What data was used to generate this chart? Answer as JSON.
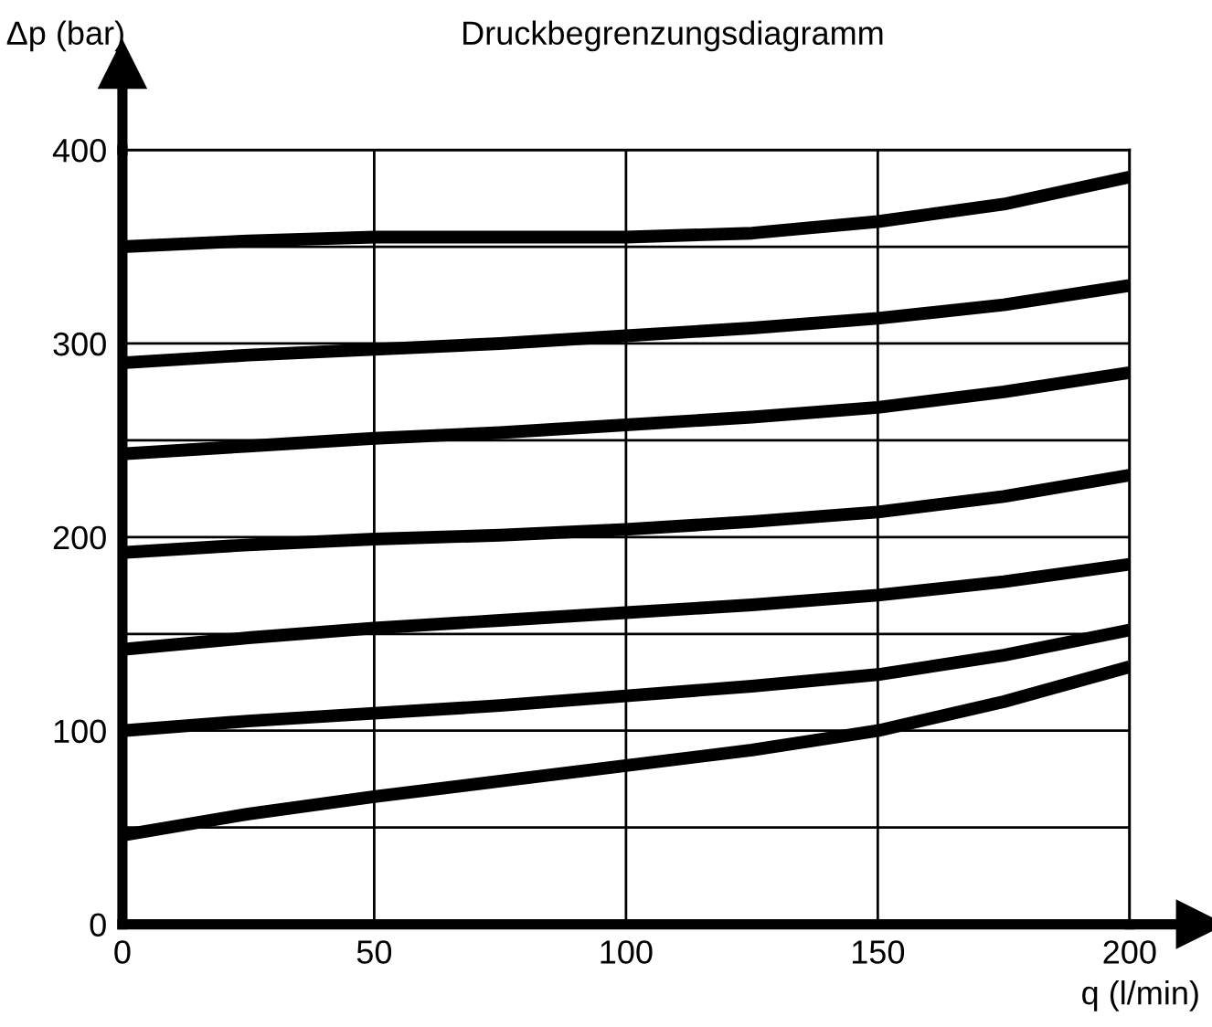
{
  "chart_data": {
    "type": "line",
    "title": "Druckbegrenzungsdiagramm",
    "xlabel": "q (l/min)",
    "ylabel": "Δp (bar)",
    "x": [
      0,
      25,
      50,
      75,
      100,
      125,
      150,
      175,
      200
    ],
    "series": [
      {
        "color": "#000000",
        "values": [
          350,
          353,
          355,
          355,
          355,
          357,
          363,
          372,
          386
        ]
      },
      {
        "color": "#000000",
        "values": [
          290,
          294,
          297,
          300,
          304,
          308,
          313,
          320,
          330
        ]
      },
      {
        "color": "#000000",
        "values": [
          243,
          247,
          251,
          254,
          258,
          262,
          267,
          275,
          285
        ]
      },
      {
        "color": "#000000",
        "values": [
          192,
          196,
          199,
          201,
          204,
          208,
          213,
          221,
          232
        ]
      },
      {
        "color": "#000000",
        "values": [
          142,
          148,
          153,
          157,
          161,
          165,
          170,
          177,
          186
        ]
      },
      {
        "color": "#000000",
        "values": [
          100,
          105,
          109,
          113,
          118,
          123,
          129,
          139,
          152
        ]
      },
      {
        "color": "#000000",
        "values": [
          46,
          57,
          66,
          74,
          82,
          90,
          100,
          115,
          133
        ]
      }
    ],
    "xlim": [
      0,
      200
    ],
    "ylim": [
      0,
      400
    ],
    "xticks": [
      0,
      50,
      100,
      150,
      200
    ],
    "yticks": [
      0,
      {
        "value": 50,
        "label": null
      },
      100,
      {
        "value": 150,
        "label": null
      },
      200,
      {
        "value": 250,
        "label": null
      },
      300,
      {
        "value": 350,
        "label": null
      },
      400
    ],
    "grid": true,
    "marker": "none",
    "line_style": "solid",
    "legend": false
  }
}
